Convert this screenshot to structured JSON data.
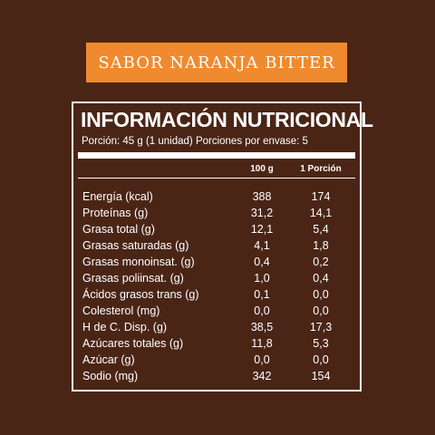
{
  "badge": {
    "text": "SABOR NARANJA BITTER"
  },
  "panel": {
    "title": "INFORMACIÓN NUTRICIONAL",
    "serving": "Porción: 45 g (1 unidad) Porciones por envase: 5",
    "columns": [
      "100 g",
      "1 Porción"
    ],
    "rows": [
      {
        "label": "Energía (kcal)",
        "per100": "388",
        "perPortion": "174"
      },
      {
        "label": "Proteínas (g)",
        "per100": "31,2",
        "perPortion": "14,1"
      },
      {
        "label": "Grasa total (g)",
        "per100": "12,1",
        "perPortion": "5,4"
      },
      {
        "label": "Grasas saturadas (g)",
        "per100": "4,1",
        "perPortion": "1,8"
      },
      {
        "label": "Grasas monoinsat. (g)",
        "per100": "0,4",
        "perPortion": "0,2"
      },
      {
        "label": "Grasas poliinsat. (g)",
        "per100": "1,0",
        "perPortion": "0,4"
      },
      {
        "label": "Ácidos grasos trans (g)",
        "per100": "0,1",
        "perPortion": "0,0"
      },
      {
        "label": "Colesterol (mg)",
        "per100": "0,0",
        "perPortion": "0,0"
      },
      {
        "label": "H de C. Disp. (g)",
        "per100": "38,5",
        "perPortion": "17,3"
      },
      {
        "label": "Azúcares totales (g)",
        "per100": "11,8",
        "perPortion": "5,3"
      },
      {
        "label": "Azúcar (g)",
        "per100": "0,0",
        "perPortion": "0,0"
      },
      {
        "label": "Sodio (mg)",
        "per100": "342",
        "perPortion": "154"
      }
    ]
  },
  "colors": {
    "background": "#4a2516",
    "badge": "#f08a2e",
    "text": "#ffffff"
  }
}
